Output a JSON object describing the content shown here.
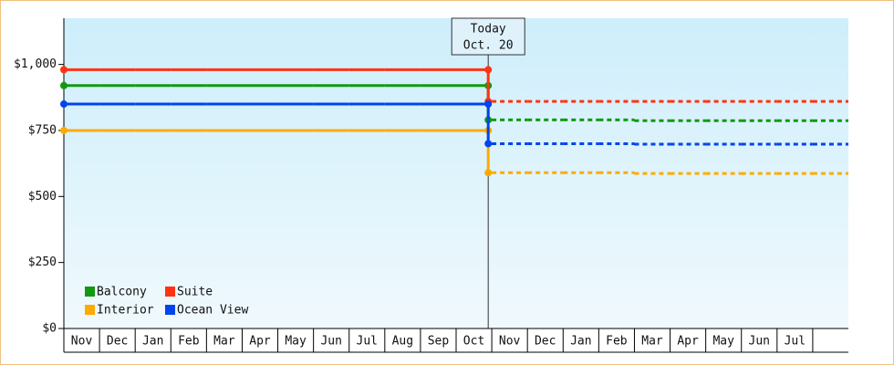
{
  "chart_data": {
    "type": "step-line",
    "categories": [
      "Nov",
      "Dec",
      "Jan",
      "Feb",
      "Mar",
      "Apr",
      "May",
      "Jun",
      "Jul",
      "Aug",
      "Sep",
      "Oct",
      "Nov",
      "Dec",
      "Jan",
      "Feb",
      "Mar",
      "Apr",
      "May",
      "Jun",
      "Jul",
      null
    ],
    "annotation": [
      "Today",
      "Oct. 20"
    ],
    "series": [
      {
        "name": "Balcony",
        "color": "#119911",
        "values": [
          920,
          920,
          920,
          920,
          920,
          920,
          920,
          920,
          920,
          920,
          920,
          920,
          790,
          790,
          790,
          790,
          787,
          787,
          787,
          787,
          787,
          787
        ]
      },
      {
        "name": "Suite",
        "color": "#ff3311",
        "values": [
          980,
          980,
          980,
          980,
          980,
          980,
          980,
          980,
          980,
          980,
          980,
          980,
          860,
          860,
          860,
          860,
          860,
          860,
          860,
          860,
          860,
          860
        ]
      },
      {
        "name": "Interior",
        "color": "#ffaa00",
        "values": [
          750,
          750,
          750,
          750,
          750,
          750,
          750,
          750,
          750,
          750,
          750,
          750,
          590,
          590,
          590,
          590,
          587,
          587,
          587,
          587,
          587,
          587
        ]
      },
      {
        "name": "Ocean View",
        "color": "#0044ee",
        "values": [
          850,
          850,
          850,
          850,
          850,
          850,
          850,
          850,
          850,
          850,
          850,
          850,
          700,
          700,
          700,
          700,
          698,
          698,
          698,
          698,
          698,
          698
        ]
      }
    ],
    "ylim": [
      0,
      1175
    ],
    "yticks": [
      {
        "value": 0,
        "label": "$0"
      },
      {
        "value": 250,
        "label": "$250"
      },
      {
        "value": 500,
        "label": "$500"
      },
      {
        "value": 750,
        "label": "$750"
      },
      {
        "value": 1000,
        "label": "$1,000"
      }
    ]
  }
}
